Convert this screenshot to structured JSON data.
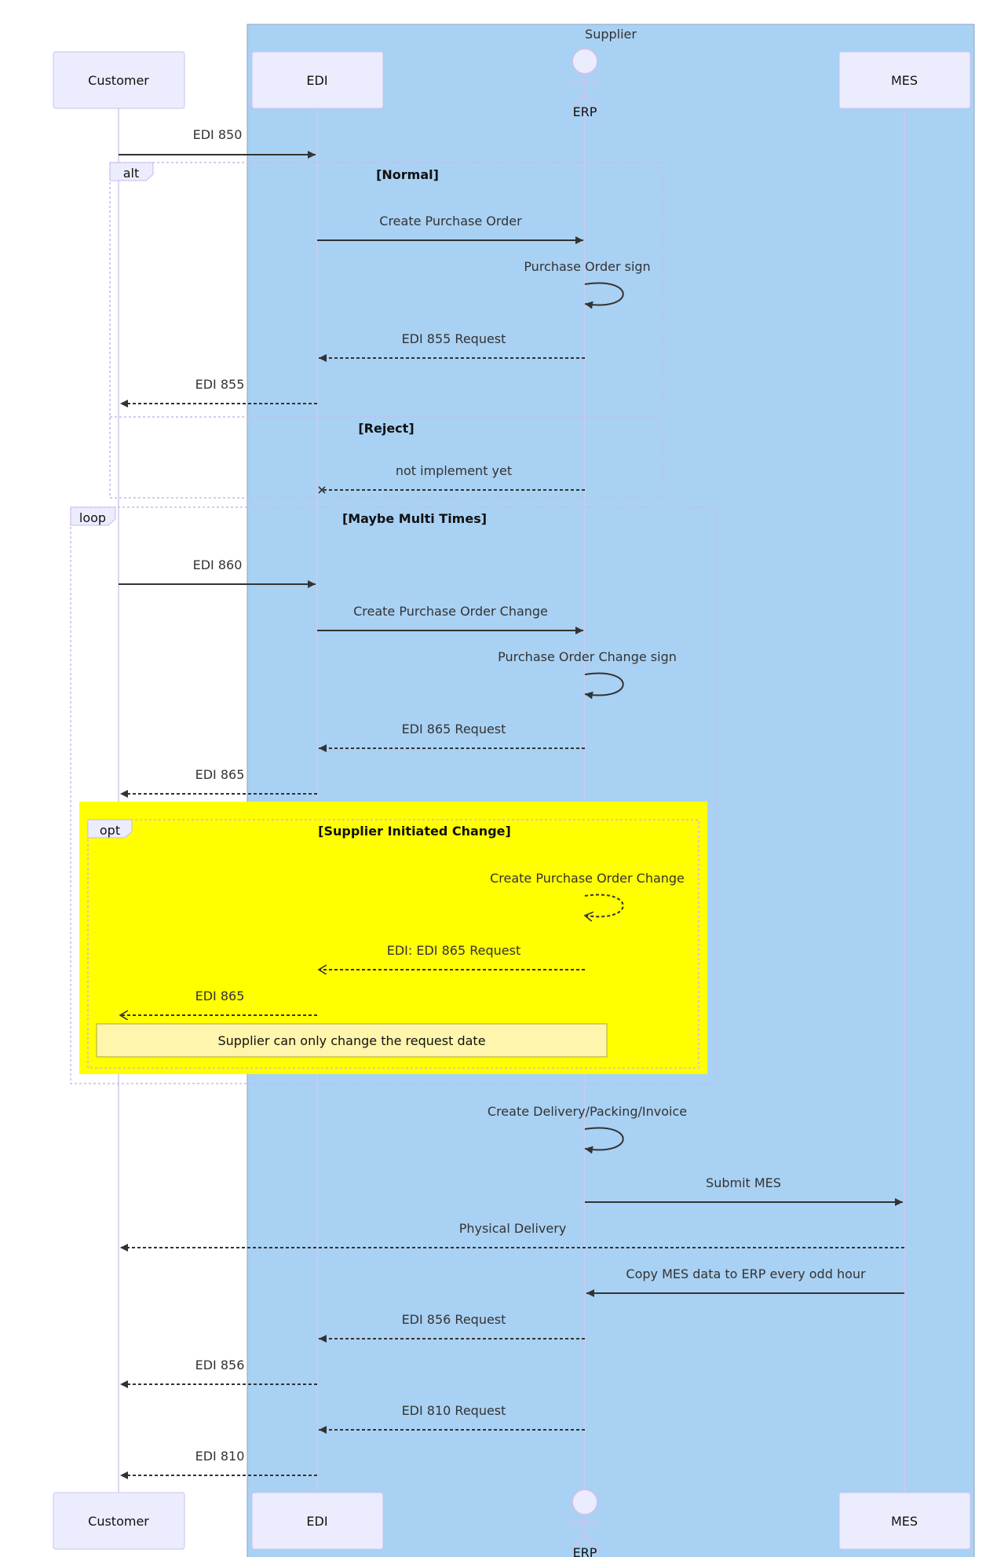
{
  "box": {
    "label": "Supplier",
    "fill": "#a9d1f3"
  },
  "participants": [
    {
      "id": "customer",
      "label": "Customer",
      "kind": "box"
    },
    {
      "id": "edi",
      "label": "EDI",
      "kind": "box"
    },
    {
      "id": "erp",
      "label": "ERP",
      "kind": "actor"
    },
    {
      "id": "mes",
      "label": "MES",
      "kind": "box"
    }
  ],
  "frames": [
    {
      "id": "alt",
      "kind": "alt",
      "condition": "[Normal]",
      "else_condition": "[Reject]"
    },
    {
      "id": "loop",
      "kind": "loop",
      "condition": "[Maybe Multi Times]"
    },
    {
      "id": "opt",
      "kind": "opt",
      "condition": "[Supplier Initiated Change]",
      "highlight": "#ffff00"
    }
  ],
  "messages": [
    {
      "from": "customer",
      "to": "edi",
      "label": "EDI 850",
      "style": "solid"
    },
    {
      "from": "edi",
      "to": "erp",
      "label": "Create Purchase Order",
      "style": "solid"
    },
    {
      "from": "erp",
      "to": "erp",
      "label": "Purchase Order sign",
      "style": "solid"
    },
    {
      "from": "erp",
      "to": "edi",
      "label": "EDI 855 Request",
      "style": "dotted"
    },
    {
      "from": "edi",
      "to": "customer",
      "label": "EDI 855",
      "style": "dotted"
    },
    {
      "from": "erp",
      "to": "edi",
      "label": "not implement yet",
      "style": "dotted-cross"
    },
    {
      "from": "customer",
      "to": "edi",
      "label": "EDI 860",
      "style": "solid"
    },
    {
      "from": "edi",
      "to": "erp",
      "label": "Create Purchase Order Change",
      "style": "solid"
    },
    {
      "from": "erp",
      "to": "erp",
      "label": "Purchase Order Change sign",
      "style": "solid"
    },
    {
      "from": "erp",
      "to": "edi",
      "label": "EDI 865 Request",
      "style": "dotted"
    },
    {
      "from": "edi",
      "to": "customer",
      "label": "EDI 865",
      "style": "dotted"
    },
    {
      "from": "erp",
      "to": "erp",
      "label": "Create Purchase Order Change",
      "style": "dotted-open"
    },
    {
      "from": "erp",
      "to": "edi",
      "label": "EDI: EDI 865 Request",
      "style": "dotted-open"
    },
    {
      "from": "edi",
      "to": "customer",
      "label": "EDI 865",
      "style": "dotted-open"
    },
    {
      "from": "erp",
      "to": "erp",
      "label": "Create Delivery/Packing/Invoice",
      "style": "solid"
    },
    {
      "from": "erp",
      "to": "mes",
      "label": "Submit MES",
      "style": "solid"
    },
    {
      "from": "mes",
      "to": "customer",
      "label": "Physical Delivery",
      "style": "dotted"
    },
    {
      "from": "mes",
      "to": "erp",
      "label": "Copy MES data to ERP every odd hour",
      "style": "solid"
    },
    {
      "from": "erp",
      "to": "edi",
      "label": "EDI 856 Request",
      "style": "dotted"
    },
    {
      "from": "edi",
      "to": "customer",
      "label": "EDI 856",
      "style": "dotted"
    },
    {
      "from": "erp",
      "to": "edi",
      "label": "EDI 810 Request",
      "style": "dotted"
    },
    {
      "from": "edi",
      "to": "customer",
      "label": "EDI 810",
      "style": "dotted"
    }
  ],
  "notes": [
    {
      "text": "Supplier can only change the request date"
    }
  ]
}
